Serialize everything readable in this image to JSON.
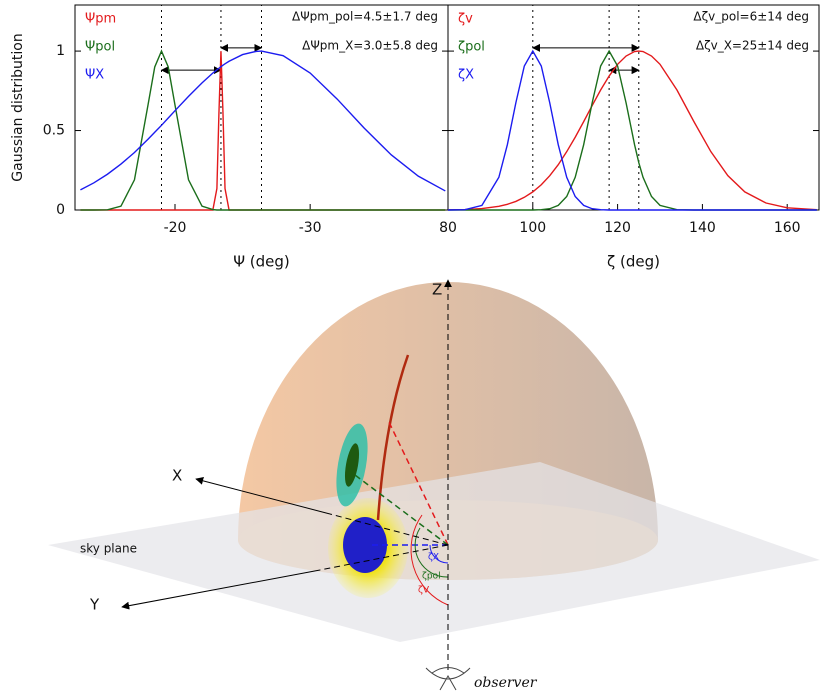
{
  "chart_data": [
    {
      "type": "line",
      "xlabel": "Ψ (deg)",
      "ylabel": "Gaussian distribution",
      "x": [
        -13,
        -14,
        -15,
        -16,
        -17,
        -18,
        -18.5,
        -19,
        -19.5,
        -20,
        -21,
        -22,
        -22.8,
        -23.1,
        -23.25,
        -23.4,
        -23.55,
        -23.7,
        -24,
        -25,
        -26,
        -26.4,
        -28,
        -30,
        -32,
        -34,
        -36,
        -38,
        -40
      ],
      "series": [
        {
          "name": "Ψpm",
          "color": "#e31a1c",
          "values": [
            0,
            0,
            0,
            0,
            0,
            0,
            0,
            0,
            0,
            0,
            0,
            0,
            0,
            0.135,
            0.61,
            1,
            0.61,
            0.135,
            0,
            0,
            0,
            0,
            0,
            0,
            0,
            0,
            0,
            0,
            0
          ]
        },
        {
          "name": "Ψpol",
          "color": "#1b6e1b",
          "values": [
            0,
            0,
            0.001,
            0.024,
            0.19,
            0.66,
            0.9,
            1,
            0.9,
            0.66,
            0.19,
            0.024,
            0.003,
            0,
            0,
            0,
            0,
            0,
            0,
            0,
            0,
            0,
            0,
            0,
            0,
            0,
            0,
            0,
            0
          ]
        },
        {
          "name": "ΨX",
          "color": "#1c1cf0",
          "values": [
            0.127,
            0.171,
            0.225,
            0.289,
            0.362,
            0.445,
            0.489,
            0.533,
            0.579,
            0.625,
            0.715,
            0.8,
            0.862,
            0.882,
            0.892,
            0.902,
            0.911,
            0.92,
            0.936,
            0.978,
            0.998,
            1,
            0.971,
            0.862,
            0.698,
            0.515,
            0.347,
            0.213,
            0.12
          ]
        }
      ],
      "xlim": [
        -12.6,
        -40.2
      ],
      "xticks": [
        -20,
        -30
      ],
      "ylim": [
        0,
        1.29
      ],
      "yticks": [
        0,
        0.5,
        1
      ],
      "ytick_labels": true,
      "vlines": [
        -19,
        -23.4,
        -26.4
      ],
      "arrows": [
        {
          "x": [
            -19,
            -23.4
          ],
          "y": 0.88
        },
        {
          "x": [
            -23.4,
            -26.4
          ],
          "y": 1.02
        }
      ],
      "annotations": [
        "ΔΨpm_pol=4.5±1.7 deg",
        "ΔΨpm_X=3.0±5.8 deg"
      ]
    },
    {
      "type": "line",
      "xlabel": "ζ (deg)",
      "x": [
        80,
        84,
        88,
        92,
        94,
        96,
        98,
        100,
        102,
        104,
        106,
        108,
        110,
        112,
        114,
        116,
        118,
        120,
        122,
        124,
        125,
        126,
        128,
        130,
        134,
        138,
        142,
        146,
        150,
        155,
        160,
        167
      ],
      "series": [
        {
          "name": "ζv",
          "color": "#e31a1c",
          "values": [
            0.001,
            0.003,
            0.009,
            0.023,
            0.036,
            0.054,
            0.08,
            0.114,
            0.159,
            0.216,
            0.285,
            0.367,
            0.458,
            0.556,
            0.657,
            0.755,
            0.843,
            0.917,
            0.969,
            0.997,
            1,
            0.997,
            0.969,
            0.917,
            0.755,
            0.556,
            0.367,
            0.216,
            0.114,
            0.044,
            0.014,
            0.002
          ]
        },
        {
          "name": "ζpol",
          "color": "#1b6e1b",
          "values": [
            0,
            0,
            0,
            0,
            0,
            0,
            0,
            0,
            0.002,
            0.008,
            0.029,
            0.085,
            0.206,
            0.411,
            0.674,
            0.906,
            1,
            0.906,
            0.674,
            0.411,
            0.298,
            0.206,
            0.085,
            0.029,
            0.002,
            0,
            0,
            0,
            0,
            0,
            0,
            0
          ]
        },
        {
          "name": "ζX",
          "color": "#1c1cf0",
          "values": [
            0,
            0.002,
            0.029,
            0.206,
            0.411,
            0.674,
            0.906,
            1,
            0.906,
            0.674,
            0.411,
            0.206,
            0.085,
            0.029,
            0.008,
            0.002,
            0,
            0,
            0,
            0,
            0,
            0,
            0,
            0,
            0,
            0,
            0,
            0,
            0,
            0,
            0,
            0
          ]
        }
      ],
      "xlim": [
        80,
        167.5
      ],
      "xticks": [
        80,
        100,
        120,
        140,
        160
      ],
      "ylim": [
        0,
        1.29
      ],
      "yticks": [
        0,
        0.5,
        1
      ],
      "ytick_labels": false,
      "vlines": [
        100,
        118,
        125
      ],
      "arrows": [
        {
          "x": [
            100,
            125
          ],
          "y": 1.02
        },
        {
          "x": [
            118,
            125
          ],
          "y": 0.88
        }
      ],
      "annotations": [
        "Δζv_pol=6±14 deg",
        "Δζv_X=25±14 deg"
      ]
    }
  ],
  "diagram": {
    "labels": {
      "z": "Z",
      "x": "X",
      "y": "Y",
      "sky": "sky plane",
      "observer": "observer",
      "zx": "ζX",
      "zpol": "ζpol",
      "zv": "ζV"
    }
  }
}
